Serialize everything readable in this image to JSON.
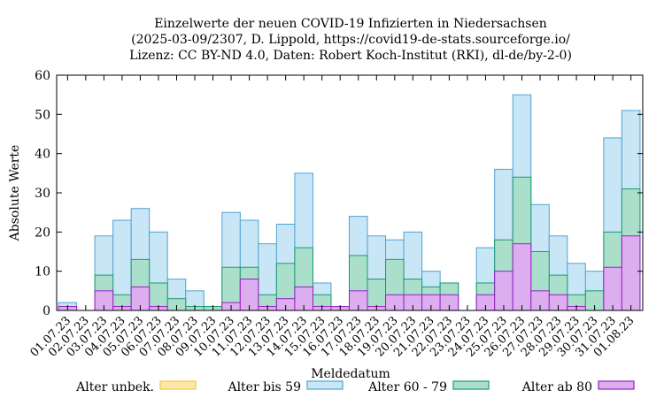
{
  "chart_data": {
    "type": "bar",
    "stacked_overlay": true,
    "title_lines": [
      "Einzelwerte der neuen COVID-19 Infizierten in Niedersachsen",
      "(2025-03-09/2307, D. Lippold, https://covid19-de-stats.sourceforge.io/",
      "Lizenz: CC BY-ND 4.0, Daten: Robert Koch-Institut (RKI), dl-de/by-2-0)"
    ],
    "xlabel": "Meldedatum",
    "ylabel": "Absolute Werte",
    "ylim": [
      0,
      60
    ],
    "yticks": [
      0,
      10,
      20,
      30,
      40,
      50,
      60
    ],
    "grid": false,
    "legend_position": "bottom",
    "categories": [
      "01.07.23",
      "02.07.23",
      "03.07.23",
      "04.07.23",
      "05.07.23",
      "06.07.23",
      "07.07.23",
      "08.07.23",
      "09.07.23",
      "10.07.23",
      "11.07.23",
      "12.07.23",
      "13.07.23",
      "14.07.23",
      "15.07.23",
      "16.07.23",
      "17.07.23",
      "18.07.23",
      "19.07.23",
      "20.07.23",
      "21.07.23",
      "22.07.23",
      "23.07.23",
      "24.07.23",
      "25.07.23",
      "26.07.23",
      "27.07.23",
      "28.07.23",
      "29.07.23",
      "30.07.23",
      "31.07.23",
      "01.08.23"
    ],
    "series": [
      {
        "name": "Alter unbek.",
        "color": "#f5c842",
        "fill": "#fce6a8",
        "values": [
          0,
          0,
          0,
          0,
          0,
          0,
          0,
          0,
          0,
          0,
          0,
          0,
          0,
          0,
          0,
          0,
          0,
          0,
          0,
          0,
          0,
          0,
          0,
          0,
          0,
          0,
          0,
          0,
          0,
          0,
          0,
          0
        ]
      },
      {
        "name": "Alter bis 59",
        "color": "#4fa3d1",
        "fill": "#c9e6f7",
        "values": [
          2,
          0,
          19,
          23,
          26,
          20,
          8,
          5,
          1,
          25,
          23,
          17,
          22,
          35,
          7,
          1,
          24,
          19,
          18,
          20,
          10,
          7,
          0,
          16,
          36,
          55,
          27,
          19,
          12,
          10,
          44,
          51
        ]
      },
      {
        "name": "Alter 60 - 79",
        "color": "#1a9a6e",
        "fill": "#aadfcc",
        "values": [
          1,
          0,
          9,
          4,
          13,
          7,
          3,
          1,
          1,
          11,
          11,
          4,
          12,
          16,
          4,
          1,
          14,
          8,
          13,
          8,
          6,
          7,
          0,
          7,
          18,
          34,
          15,
          9,
          4,
          5,
          20,
          31
        ]
      },
      {
        "name": "Alter ab 80",
        "color": "#9a1fc2",
        "fill": "#dcaef0",
        "values": [
          1,
          0,
          5,
          1,
          6,
          1,
          0,
          0,
          0,
          2,
          8,
          1,
          3,
          6,
          1,
          1,
          5,
          1,
          4,
          4,
          4,
          4,
          0,
          4,
          10,
          17,
          5,
          4,
          1,
          0,
          11,
          19
        ]
      }
    ]
  }
}
